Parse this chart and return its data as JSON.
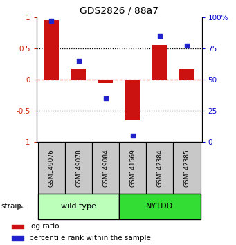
{
  "title": "GDS2826 / 88a7",
  "samples": [
    "GSM149076",
    "GSM149078",
    "GSM149084",
    "GSM141569",
    "GSM142384",
    "GSM142385"
  ],
  "log_ratios": [
    0.95,
    0.18,
    -0.05,
    -0.65,
    0.55,
    0.17
  ],
  "percentile_ranks": [
    97,
    65,
    35,
    5,
    85,
    77
  ],
  "groups": [
    {
      "label": "wild type",
      "indices": [
        0,
        1,
        2
      ],
      "color": "#bbffbb"
    },
    {
      "label": "NY1DD",
      "indices": [
        3,
        4,
        5
      ],
      "color": "#33dd33"
    }
  ],
  "bar_color": "#cc1111",
  "dot_color": "#2222cc",
  "left_ylim": [
    -1,
    1
  ],
  "right_ylim": [
    0,
    100
  ],
  "left_yticks": [
    -1,
    -0.5,
    0,
    0.5,
    1
  ],
  "right_yticks": [
    0,
    25,
    50,
    75,
    100
  ],
  "left_yticklabels": [
    "-1",
    "-0.5",
    "0",
    "0.5",
    "1"
  ],
  "right_yticklabels": [
    "0",
    "25",
    "50",
    "75",
    "100%"
  ],
  "hlines_dotted": [
    0.5,
    -0.5
  ],
  "hline_dashed": 0,
  "legend_items": [
    {
      "color": "#cc1111",
      "label": "log ratio"
    },
    {
      "color": "#2222cc",
      "label": "percentile rank within the sample"
    }
  ],
  "strain_label": "strain",
  "background_color": "#ffffff",
  "sample_box_color": "#c8c8c8",
  "title_fontsize": 10,
  "tick_fontsize": 7.5,
  "sample_fontsize": 6.5,
  "group_fontsize": 8,
  "legend_fontsize": 7.5
}
